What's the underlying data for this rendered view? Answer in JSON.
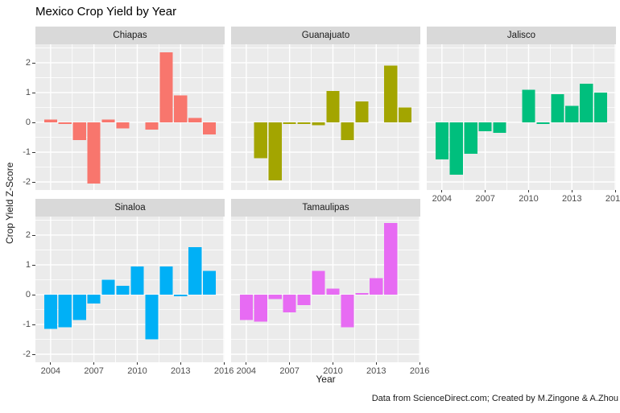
{
  "title": "Mexico Crop Yield by Year",
  "axes": {
    "x_label": "Year",
    "y_label": "Crop Yield Z-Score"
  },
  "caption": "Data from ScienceDirect.com; Created by M.Zingone & A.Zhou",
  "chart_data": {
    "type": "bar",
    "title": "Mexico Crop Yield by Year",
    "xlabel": "Year",
    "ylabel": "Crop Yield Z-Score",
    "facet_layout": {
      "columns": 3,
      "rows": 2,
      "order": [
        "Chiapas",
        "Guanajuato",
        "Jalisco",
        "Sinaloa",
        "Tamaulipas"
      ]
    },
    "x": [
      2004,
      2005,
      2006,
      2007,
      2008,
      2009,
      2010,
      2011,
      2012,
      2013,
      2014,
      2015
    ],
    "x_tick_labels": [
      2004,
      2007,
      2010,
      2013,
      2016
    ],
    "y_tick_labels": [
      2,
      1,
      0,
      -1,
      -2
    ],
    "x_minor_gridlines": [
      2005.5,
      2008.5,
      2011.5,
      2014.5
    ],
    "y_minor_gridlines": [
      -1.5,
      -0.5,
      0.5,
      1.5,
      2.5
    ],
    "xlim": [
      2002.95,
      2016.05
    ],
    "ylim": [
      -2.27,
      2.62
    ],
    "bar_width_years": 0.9,
    "panel_bg": "#ebebeb",
    "strip_bg": "#d9d9d9",
    "gridline_color": "#ffffff",
    "series": [
      {
        "name": "Chiapas",
        "color": "#F8766D",
        "values": [
          0.1,
          -0.05,
          -0.6,
          -2.05,
          0.1,
          -0.2,
          null,
          -0.25,
          2.35,
          0.9,
          0.15,
          -0.4
        ]
      },
      {
        "name": "Guanajuato",
        "color": "#A3A500",
        "values": [
          null,
          -1.2,
          -1.95,
          -0.05,
          -0.05,
          -0.1,
          1.05,
          -0.6,
          0.7,
          null,
          1.9,
          0.5
        ]
      },
      {
        "name": "Jalisco",
        "color": "#00BF7D",
        "values": [
          -1.25,
          -1.75,
          -1.05,
          -0.3,
          -0.35,
          null,
          1.1,
          -0.05,
          0.95,
          0.55,
          1.3,
          1.0
        ]
      },
      {
        "name": "Sinaloa",
        "color": "#00B0F6",
        "values": [
          -1.15,
          -1.1,
          -0.85,
          -0.3,
          0.5,
          0.3,
          0.95,
          -1.5,
          0.95,
          -0.05,
          1.6,
          0.8
        ]
      },
      {
        "name": "Tamaulipas",
        "color": "#E76BF3",
        "values": [
          -0.85,
          -0.9,
          -0.15,
          -0.6,
          -0.35,
          0.8,
          0.2,
          -1.1,
          0.05,
          0.55,
          2.4,
          null
        ]
      }
    ]
  }
}
